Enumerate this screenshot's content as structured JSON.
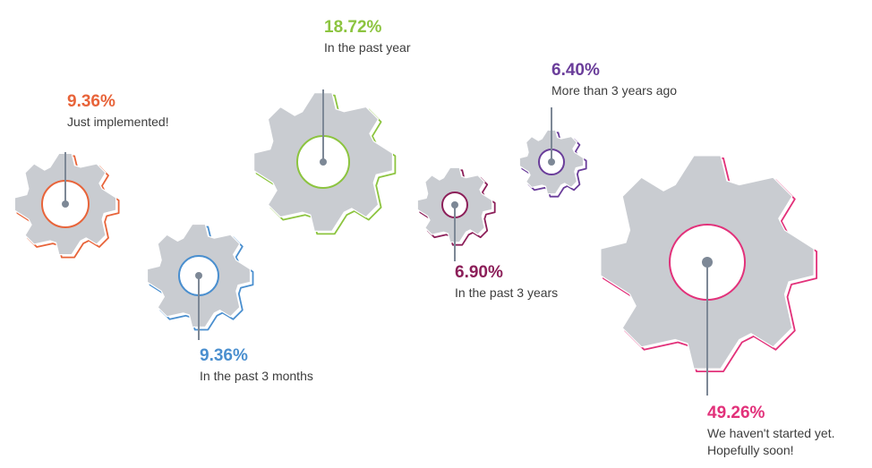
{
  "chart_data": {
    "type": "pictorial",
    "gear_fill": "#c9ccd1",
    "connector_color": "#7d8896",
    "items": [
      {
        "value": 9.36,
        "percent_label": "9.36%",
        "label": [
          "Just implemented!"
        ],
        "color": "#e8643a"
      },
      {
        "value": 9.36,
        "percent_label": "9.36%",
        "label": [
          "In the past 3 months"
        ],
        "color": "#4a8fcf"
      },
      {
        "value": 18.72,
        "percent_label": "18.72%",
        "label": [
          "In the past year"
        ],
        "color": "#8cc43f"
      },
      {
        "value": 6.9,
        "percent_label": "6.90%",
        "label": [
          "In the past 3 years"
        ],
        "color": "#8c1f59"
      },
      {
        "value": 6.4,
        "percent_label": "6.40%",
        "label": [
          "More than 3 years ago"
        ],
        "color": "#6a3d9a"
      },
      {
        "value": 49.26,
        "percent_label": "49.26%",
        "label": [
          "We haven't started yet.",
          "Hopefully soon!"
        ],
        "color": "#e2317a"
      }
    ]
  }
}
